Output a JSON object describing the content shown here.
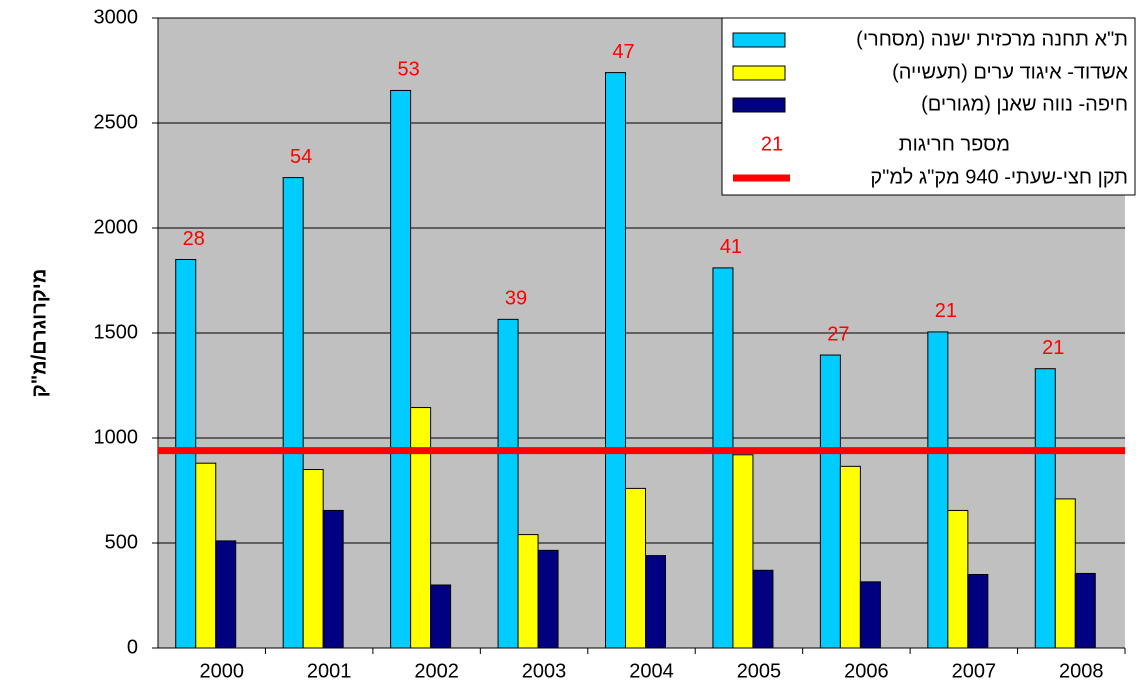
{
  "chart_data": {
    "type": "bar",
    "ylabel": "מיקרוגרם/מ\"ק",
    "categories": [
      "2000",
      "2001",
      "2002",
      "2003",
      "2004",
      "2005",
      "2006",
      "2007",
      "2008"
    ],
    "series": [
      {
        "name": "ת\"א תחנה מרכזית ישנה (מסחרי)",
        "color": "#00ccff",
        "values": [
          1850,
          2240,
          2655,
          1565,
          2740,
          1810,
          1395,
          1505,
          1330
        ]
      },
      {
        "name": "אשדוד- איגוד ערים (תעשייה)",
        "color": "#ffff00",
        "values": [
          880,
          850,
          1145,
          540,
          760,
          920,
          865,
          655,
          710
        ]
      },
      {
        "name": "חיפה- נווה שאנן (מגורים)",
        "color": "#000080",
        "values": [
          510,
          655,
          300,
          465,
          440,
          370,
          315,
          350,
          355
        ]
      }
    ],
    "exceedances": {
      "name": "מספר חריגות",
      "color": "#ff0000",
      "legend_sample": "21",
      "values": [
        28,
        54,
        53,
        39,
        47,
        41,
        27,
        21,
        21
      ]
    },
    "threshold": {
      "name": "תקן חצי-שעתי- 940 מק\"ג למ\"ק",
      "value": 940,
      "color": "#ff0000"
    },
    "ylim": [
      0,
      3000
    ],
    "yticks": [
      0,
      500,
      1000,
      1500,
      2000,
      2500,
      3000
    ],
    "grid": true,
    "legend_position": "top-right"
  }
}
